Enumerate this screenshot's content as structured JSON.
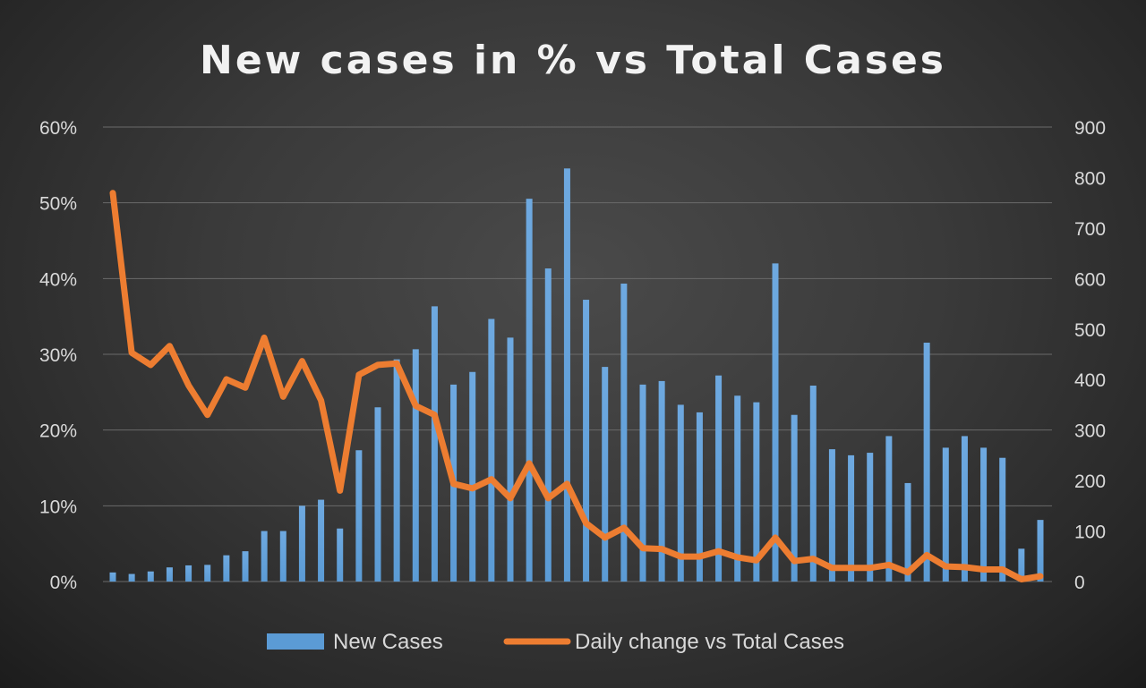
{
  "chart_data": {
    "type": "bar+line",
    "title": "New cases in % vs Total Cases",
    "left_axis": {
      "ticks": [
        "0%",
        "10%",
        "20%",
        "30%",
        "40%",
        "50%",
        "60%"
      ],
      "range": [
        0,
        60
      ]
    },
    "right_axis": {
      "ticks": [
        "0",
        "100",
        "200",
        "300",
        "400",
        "500",
        "600",
        "700",
        "800",
        "900"
      ],
      "range": [
        0,
        900
      ]
    },
    "grid": true,
    "legend_position": "bottom",
    "series": [
      {
        "name": "New Cases",
        "type": "bar",
        "axis": "right",
        "color": "#5b9bd5",
        "values": [
          18,
          15,
          20,
          28,
          32,
          33,
          52,
          60,
          100,
          100,
          150,
          162,
          105,
          260,
          345,
          440,
          460,
          545,
          390,
          415,
          520,
          483,
          758,
          620,
          818,
          558,
          425,
          590,
          390,
          397,
          350,
          335,
          408,
          368,
          355,
          630,
          330,
          388,
          262,
          250,
          255,
          288,
          195,
          473,
          265,
          288,
          265,
          245,
          65,
          122
        ]
      },
      {
        "name": "Daily change vs Total Cases",
        "type": "line",
        "axis": "left",
        "color": "#ed7d31",
        "values": [
          51.3,
          30.2,
          28.6,
          31.1,
          25.9,
          22.0,
          26.7,
          25.6,
          32.2,
          24.4,
          29.1,
          23.9,
          12.0,
          27.3,
          28.6,
          28.8,
          23.2,
          22.0,
          12.9,
          12.3,
          13.5,
          11.0,
          15.6,
          11.0,
          12.9,
          7.7,
          5.8,
          7.1,
          4.4,
          4.3,
          3.3,
          3.3,
          4.0,
          3.2,
          2.8,
          5.8,
          2.7,
          3.0,
          1.8,
          1.8,
          1.8,
          2.2,
          1.2,
          3.5,
          2.0,
          1.9,
          1.6,
          1.6,
          0.3,
          0.7
        ]
      }
    ]
  }
}
